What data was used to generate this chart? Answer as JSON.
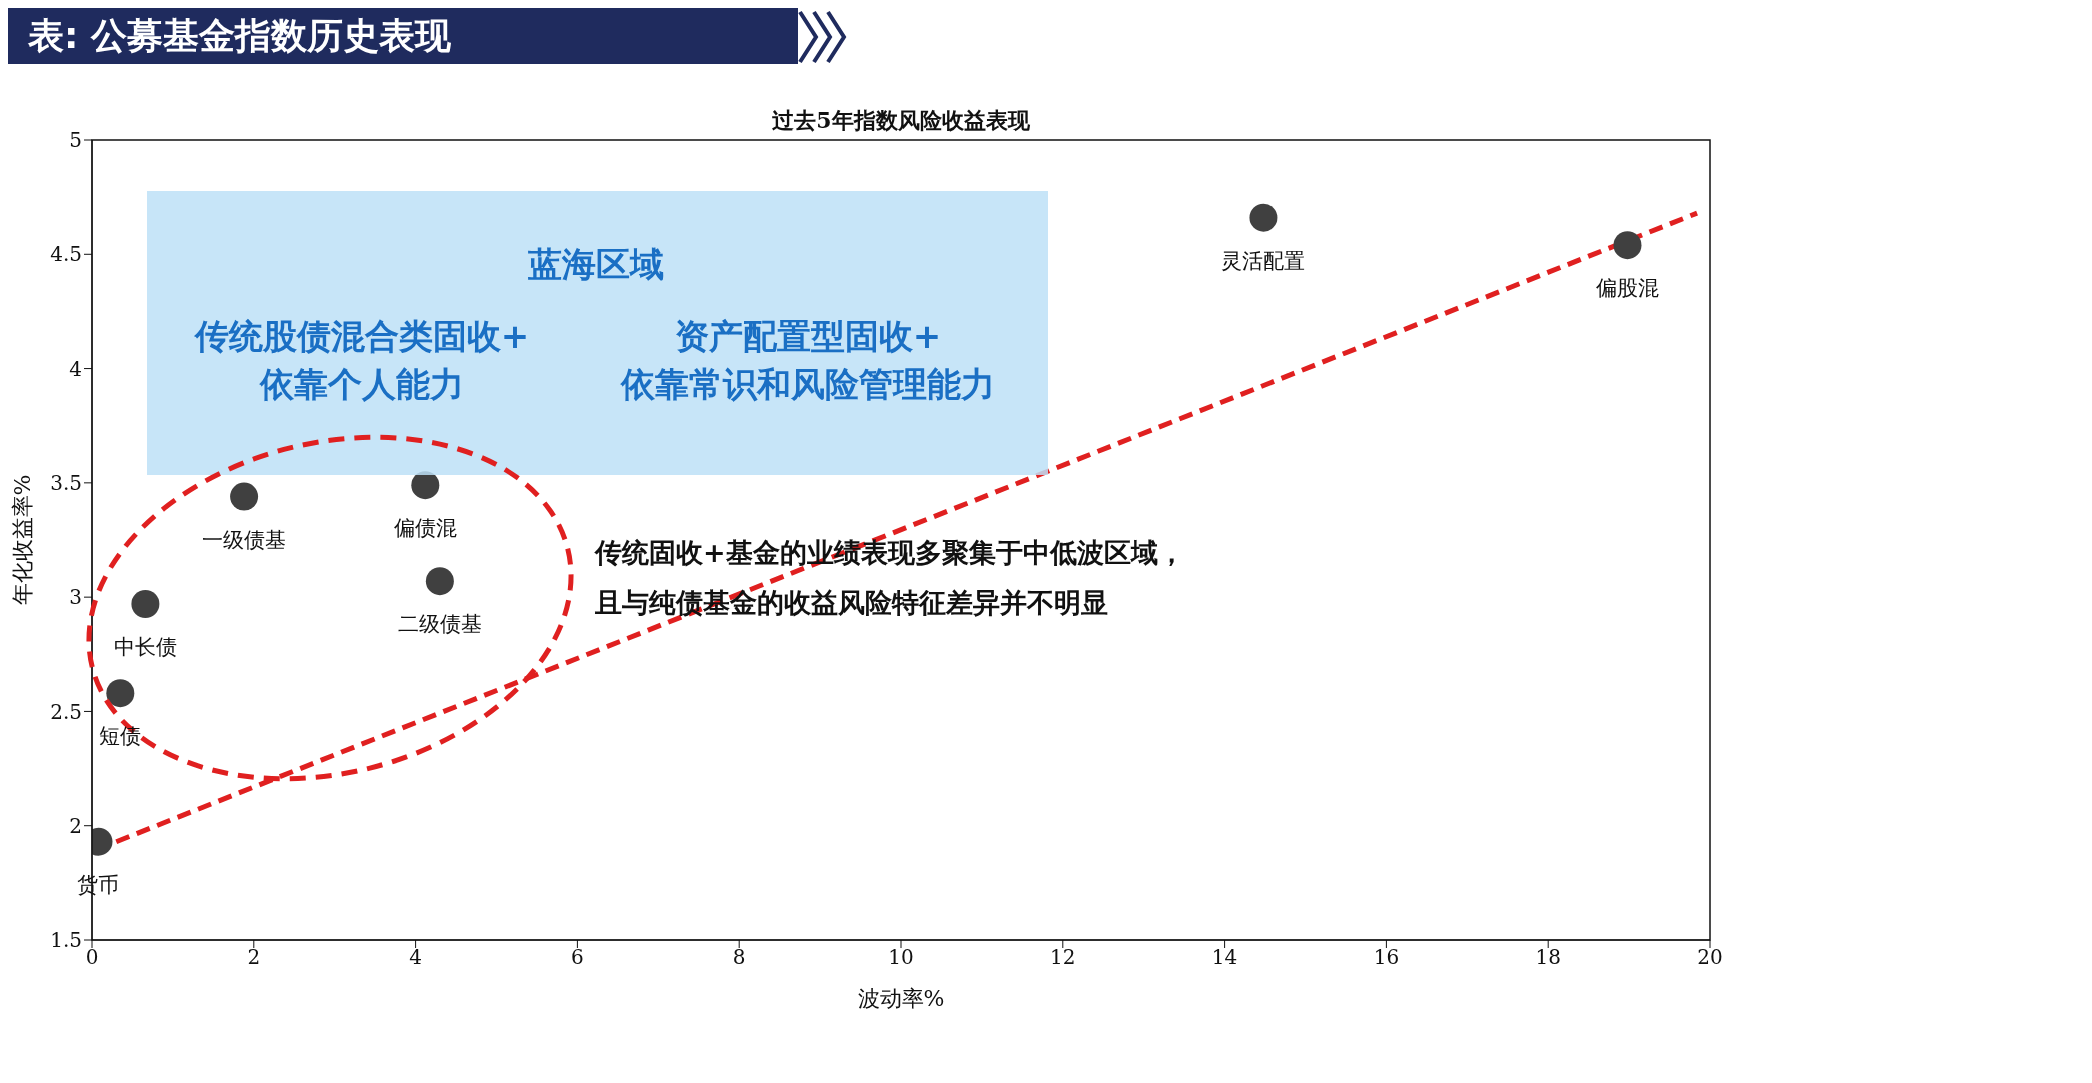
{
  "chart_data": {
    "type": "scatter",
    "title": "表: 公募基金指数历史表现",
    "subtitle": "过去5年指数风险收益表现",
    "xlabel": "波动率%",
    "ylabel": "年化收益率%",
    "xlim": [
      0,
      20
    ],
    "ylim": [
      1.5,
      5
    ],
    "xticks": [
      0,
      2,
      4,
      6,
      8,
      10,
      12,
      14,
      16,
      18,
      20
    ],
    "yticks": [
      1.5,
      2,
      2.5,
      3,
      3.5,
      4,
      4.5,
      5
    ],
    "grid": false,
    "legend": false,
    "marker": "circle",
    "series": [
      {
        "color": "#404040",
        "x": [
          0.08,
          0.35,
          0.66,
          1.88,
          4.12,
          4.3,
          14.48,
          18.98
        ],
        "values": [
          1.93,
          2.58,
          2.97,
          3.44,
          3.49,
          3.07,
          4.66,
          4.54
        ]
      },
      {
        "type": "line",
        "color": "#e02020",
        "line_style": "dashed",
        "marker": "none",
        "x": [
          0.3,
          19.84
        ],
        "values": [
          1.93,
          4.68
        ]
      }
    ],
    "annotations": [
      {
        "text": "货币",
        "x": 0.08,
        "y": 1.93
      },
      {
        "text": "短债",
        "x": 0.35,
        "y": 2.58
      },
      {
        "text": "中长债",
        "x": 0.66,
        "y": 2.97
      },
      {
        "text": "一级债基",
        "x": 1.88,
        "y": 3.44
      },
      {
        "text": "偏债混",
        "x": 4.12,
        "y": 3.49
      },
      {
        "text": "二级债基",
        "x": 4.3,
        "y": 3.07
      },
      {
        "text": "灵活配置",
        "x": 14.48,
        "y": 4.66
      },
      {
        "text": "偏股混",
        "x": 18.98,
        "y": 4.54
      },
      "蓝海区域",
      "传统股债混合类固收+\n依靠个人能力",
      "资产配置型固收+\n依靠常识和风险管理能力",
      "传统固收+基金的业绩表现多聚集于中低波区域，",
      "且与纯债基金的收益风险特征差异并不明显"
    ]
  }
}
